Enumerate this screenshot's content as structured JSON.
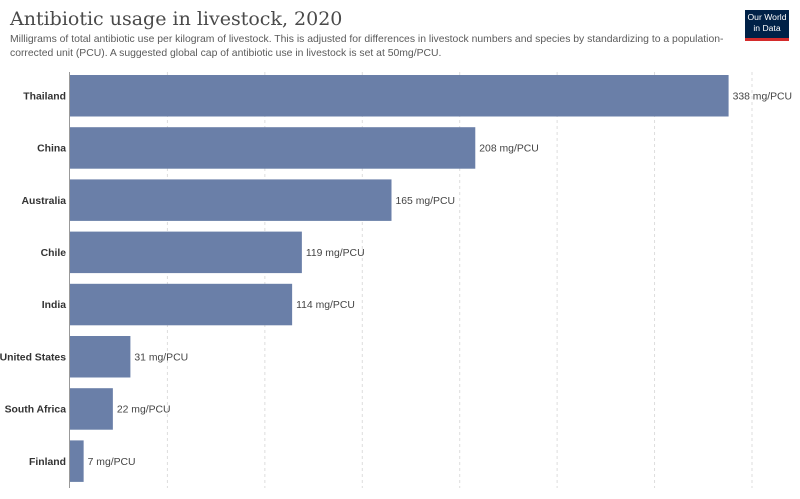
{
  "header": {
    "title": "Antibiotic usage in livestock, 2020",
    "subtitle": "Milligrams of total antibiotic use per kilogram of livestock. This is adjusted for differences in livestock numbers and species by standardizing to a population-corrected unit (PCU). A suggested global cap of antibiotic use in livestock is set at 50mg/PCU."
  },
  "logo": {
    "line1": "Our World",
    "line2": "in Data"
  },
  "colors": {
    "bar": "#6a7fa8",
    "grid": "#dddddd",
    "axis": "#999999"
  },
  "chart_data": {
    "type": "bar",
    "orientation": "horizontal",
    "title": "Antibiotic usage in livestock, 2020",
    "unit": "mg/PCU",
    "categories": [
      "Thailand",
      "China",
      "Australia",
      "Chile",
      "India",
      "United States",
      "South Africa",
      "Finland"
    ],
    "values": [
      338,
      208,
      165,
      119,
      114,
      31,
      22,
      7
    ],
    "value_labels": [
      "338 mg/PCU",
      "208 mg/PCU",
      "165 mg/PCU",
      "119 mg/PCU",
      "114 mg/PCU",
      "31 mg/PCU",
      "22 mg/PCU",
      "7 mg/PCU"
    ],
    "xlim": [
      0,
      350
    ],
    "grid": true
  }
}
